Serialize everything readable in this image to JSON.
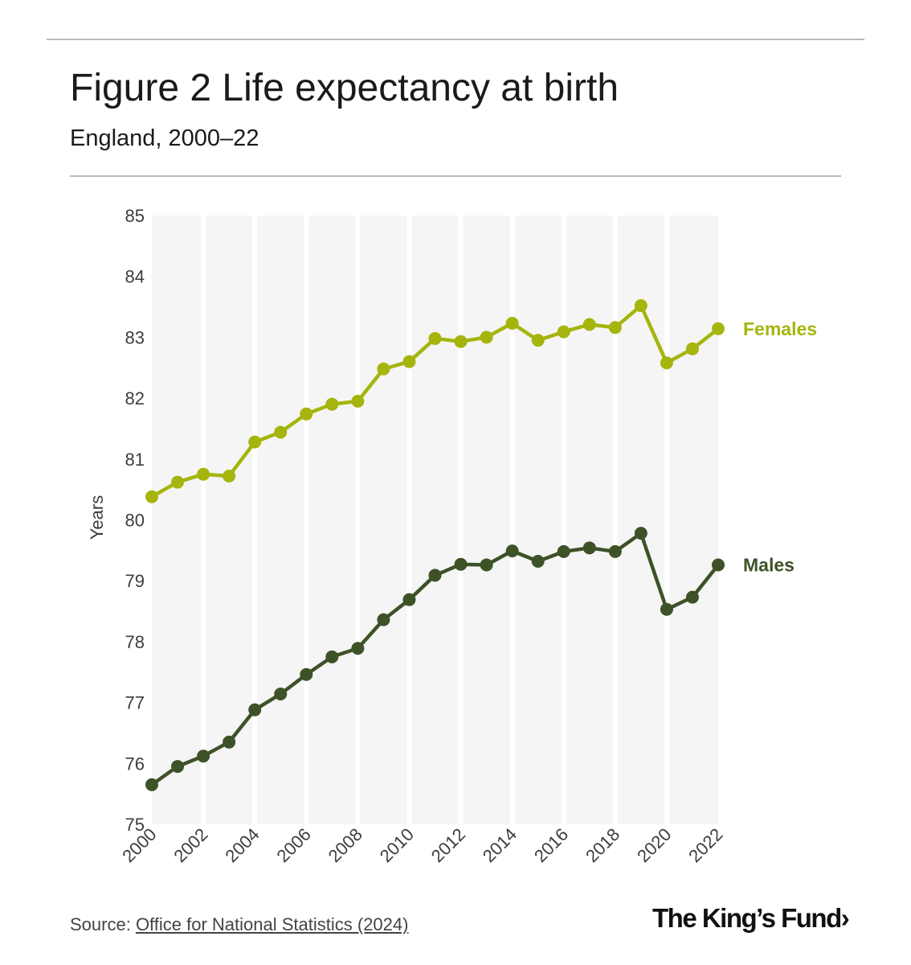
{
  "header": {
    "title": "Figure 2 Life expectancy at birth",
    "subtitle": "England, 2000–22"
  },
  "footer": {
    "source_prefix": "Source: ",
    "source_link": "Office for National Statistics (2024)",
    "brand": "The King’s Fund›"
  },
  "chart_data": {
    "type": "line",
    "title": "Figure 2 Life expectancy at birth",
    "subtitle": "England, 2000–22",
    "xlabel": "",
    "ylabel": "Years",
    "ylim": [
      75,
      85
    ],
    "y_ticks": [
      75,
      76,
      77,
      78,
      79,
      80,
      81,
      82,
      83,
      84,
      85
    ],
    "x_tick_labels": [
      "2000",
      "2002",
      "2004",
      "2006",
      "2008",
      "2010",
      "2012",
      "2014",
      "2016",
      "2018",
      "2020",
      "2022"
    ],
    "grid": "alternating vertical bands",
    "x": [
      2000,
      2001,
      2002,
      2003,
      2004,
      2005,
      2006,
      2007,
      2008,
      2009,
      2010,
      2011,
      2012,
      2013,
      2014,
      2015,
      2016,
      2017,
      2018,
      2019,
      2020,
      2021,
      2022
    ],
    "series": [
      {
        "name": "Females",
        "color": "#a5b50d",
        "values": [
          80.38,
          80.62,
          80.75,
          80.72,
          81.28,
          81.44,
          81.74,
          81.9,
          81.95,
          82.48,
          82.6,
          82.98,
          82.93,
          83.0,
          83.23,
          82.95,
          83.09,
          83.21,
          83.16,
          83.52,
          82.58,
          82.81,
          83.14
        ]
      },
      {
        "name": "Males",
        "color": "#3d5227",
        "values": [
          75.65,
          75.95,
          76.12,
          76.35,
          76.88,
          77.14,
          77.46,
          77.75,
          77.89,
          78.36,
          78.69,
          79.09,
          79.27,
          79.26,
          79.49,
          79.32,
          79.48,
          79.54,
          79.48,
          79.78,
          78.53,
          78.73,
          79.26
        ]
      }
    ],
    "series_labels_position": "right end of each line"
  }
}
